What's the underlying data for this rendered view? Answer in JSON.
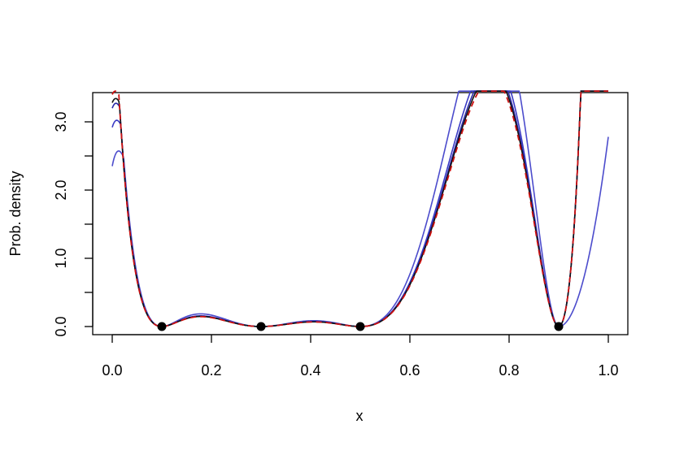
{
  "chart_data": {
    "type": "line",
    "title": "",
    "xlabel": "x",
    "ylabel": "Prob. density",
    "xlim": [
      0,
      1
    ],
    "ylim": [
      -0.13,
      3.45
    ],
    "xticks": [
      0.0,
      0.2,
      0.4,
      0.6,
      0.8,
      1.0
    ],
    "xtick_labels": [
      "0.0",
      "0.2",
      "0.4",
      "0.6",
      "0.8",
      "1.0"
    ],
    "yticks": [
      0.0,
      0.5,
      1.0,
      1.5,
      2.0,
      2.5,
      3.0
    ],
    "ytick_labels": [
      "0.0",
      "",
      "1.0",
      "",
      "2.0",
      "",
      "3.0"
    ],
    "grid": false,
    "legend": "none",
    "roots": [
      0.1,
      0.3,
      0.5,
      0.9
    ],
    "root_points": [
      {
        "x": 0.1,
        "y": 0
      },
      {
        "x": 0.3,
        "y": 0
      },
      {
        "x": 0.5,
        "y": 0
      },
      {
        "x": 0.9,
        "y": 0
      }
    ],
    "series": [
      {
        "color": "#4c4ccc",
        "style": "solid",
        "scale": 1.28,
        "value_at_0": 2.35,
        "value_at_1": 2.78
      },
      {
        "color": "#3a3ac4",
        "style": "solid",
        "scale": 1.08,
        "value_at_0": 2.92,
        "value_at_1": 3.45
      },
      {
        "color": "#2a2aa8",
        "style": "solid",
        "scale": 1.04,
        "value_at_0": 3.2,
        "value_at_1": 3.45
      },
      {
        "color": "#111111",
        "style": "solid",
        "scale": 1.02,
        "value_at_0": 3.28,
        "value_at_1": 3.45
      },
      {
        "color": "#cc1111",
        "style": "dashed",
        "scale": 1.0,
        "value_at_0": 3.4,
        "value_at_1": 3.45
      }
    ]
  }
}
